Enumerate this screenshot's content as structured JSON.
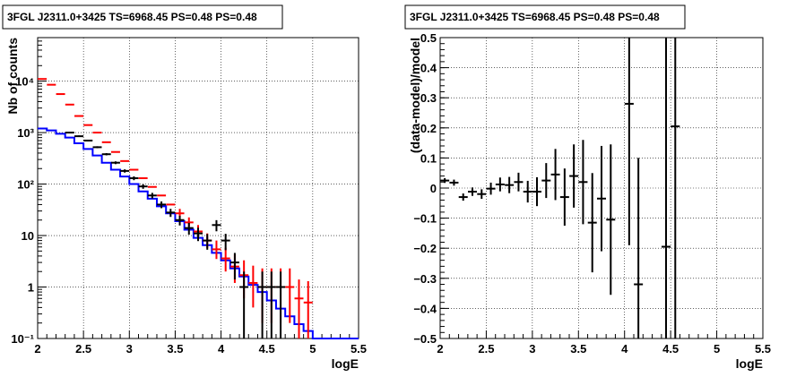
{
  "chart_data": [
    {
      "type": "histogram",
      "title": "3FGL J2311.0+3425 TS=6968.45 PS=0.48 PS=0.48",
      "xlabel": "logE",
      "ylabel": "Nb of counts",
      "xlim": [
        2,
        5.5
      ],
      "ylim": [
        0.1,
        70000
      ],
      "yscale": "log",
      "grid": true,
      "x_ticks": [
        2,
        2.5,
        3,
        3.5,
        4,
        4.5,
        5,
        5.5
      ],
      "x_tick_labels": [
        "2",
        "2.5",
        "3",
        "3.5",
        "4",
        "4.5",
        "5",
        "5.5"
      ],
      "y_ticks": [
        0.1,
        1,
        10,
        100,
        1000,
        10000
      ],
      "y_tick_labels": [
        "10⁻¹",
        "1",
        "10",
        "10²",
        "10³",
        "10⁴"
      ],
      "bin_edges": [
        2.0,
        2.1,
        2.2,
        2.3,
        2.4,
        2.5,
        2.6,
        2.7,
        2.8,
        2.9,
        3.0,
        3.1,
        3.2,
        3.3,
        3.4,
        3.5,
        3.6,
        3.7,
        3.8,
        3.9,
        4.0,
        4.1,
        4.2,
        4.3,
        4.4,
        4.5,
        4.6,
        4.7,
        4.8,
        4.9,
        5.0,
        5.1,
        5.2,
        5.3,
        5.4,
        5.5
      ],
      "series": [
        {
          "kind": "model-step",
          "color": "#0000ff",
          "values": [
            1200,
            1100,
            950,
            800,
            620,
            480,
            360,
            260,
            190,
            140,
            100,
            72,
            52,
            37,
            27,
            19,
            13,
            9,
            6.5,
            4.6,
            3.3,
            2.3,
            1.6,
            1.1,
            0.8,
            0.55,
            0.38,
            0.27,
            0.19,
            0.14,
            0.1,
            0.1,
            0.1,
            0.1,
            0.1
          ]
        },
        {
          "kind": "points-red",
          "color": "#ff0000",
          "x": [
            2.05,
            2.15,
            2.25,
            2.35,
            2.45,
            2.55,
            2.65,
            2.75,
            2.85,
            2.95,
            3.05,
            3.15,
            3.25,
            3.35,
            3.45,
            3.55,
            3.65,
            3.75,
            3.85,
            3.95,
            4.05,
            4.15,
            4.25,
            4.35,
            4.45,
            4.55,
            4.65,
            4.75,
            4.85,
            4.95
          ],
          "y": [
            11000,
            8500,
            5600,
            3500,
            2100,
            1400,
            1000,
            650,
            420,
            280,
            190,
            130,
            88,
            60,
            40,
            27,
            18,
            12,
            8,
            5.4,
            3.6,
            2.5,
            1.7,
            1.2,
            1.0,
            1.0,
            1.0,
            1.0,
            0.6,
            0.5
          ],
          "err_lo": [
            0,
            0,
            0,
            0,
            0,
            0,
            0,
            0,
            0,
            0,
            0,
            0,
            0,
            0,
            0,
            4,
            3,
            3,
            2.3,
            1.9,
            1.6,
            1.3,
            1.1,
            0.8,
            0.8,
            0.8,
            0.8,
            0.8,
            0.5,
            0.4
          ],
          "err_hi": [
            0,
            0,
            0,
            0,
            0,
            0,
            0,
            0,
            0,
            0,
            0,
            0,
            0,
            0,
            0,
            6,
            4.5,
            4,
            3,
            2.6,
            2.2,
            1.8,
            1.6,
            1.4,
            1.3,
            1.3,
            1.3,
            1.3,
            0.8,
            0.8
          ]
        },
        {
          "kind": "points-black",
          "color": "#000000",
          "x": [
            2.35,
            2.45,
            2.55,
            2.65,
            2.75,
            2.85,
            2.95,
            3.05,
            3.15,
            3.25,
            3.35,
            3.45,
            3.55,
            3.65,
            3.75,
            3.85,
            3.95,
            4.05,
            4.15,
            4.25,
            4.45,
            4.55,
            4.65
          ],
          "y": [
            1000,
            850,
            700,
            520,
            380,
            260,
            180,
            130,
            90,
            60,
            40,
            28,
            20,
            14,
            11,
            8,
            16,
            8,
            3.0,
            1.0,
            1.0,
            1.0,
            1.0
          ],
          "err_lo": [
            30,
            30,
            25,
            22,
            19,
            16,
            13,
            11,
            9,
            7.5,
            6,
            5,
            4.3,
            3.6,
            3.2,
            2.7,
            3.9,
            2.8,
            1.6,
            0.9,
            0.9,
            0.9,
            0.9
          ],
          "err_hi": [
            30,
            30,
            25,
            22,
            19,
            16,
            13,
            11,
            9,
            7.5,
            6,
            5,
            4.3,
            3.6,
            3.2,
            2.7,
            3.9,
            2.8,
            1.6,
            1.0,
            1.0,
            1.0,
            1.0
          ]
        }
      ]
    },
    {
      "type": "scatter",
      "title": "3FGL J2311.0+3425 TS=6968.45 PS=0.48 PS=0.48",
      "xlabel": "logE",
      "ylabel": "(data-model)/model",
      "xlim": [
        2,
        5.5
      ],
      "ylim": [
        -0.5,
        0.5
      ],
      "grid": true,
      "x_ticks": [
        2,
        2.5,
        3,
        3.5,
        4,
        4.5,
        5,
        5.5
      ],
      "x_tick_labels": [
        "2",
        "2.5",
        "3",
        "3.5",
        "4",
        "4.5",
        "5",
        "5.5"
      ],
      "y_ticks": [
        -0.5,
        -0.4,
        -0.3,
        -0.2,
        -0.1,
        0,
        0.1,
        0.2,
        0.3,
        0.4,
        0.5
      ],
      "y_tick_labels": [
        "−0.5",
        "−0.4",
        "−0.3",
        "−0.2",
        "−0.1",
        "0",
        "0.1",
        "0.2",
        "0.3",
        "0.4",
        "0.5"
      ],
      "series": [
        {
          "color": "#000000",
          "x": [
            2.05,
            2.15,
            2.25,
            2.35,
            2.45,
            2.55,
            2.65,
            2.75,
            2.85,
            2.95,
            3.05,
            3.15,
            3.25,
            3.35,
            3.45,
            3.55,
            3.65,
            3.75,
            3.85,
            4.05,
            4.15,
            4.45,
            4.55
          ],
          "y": [
            0.025,
            0.018,
            -0.03,
            -0.012,
            -0.02,
            -0.002,
            0.012,
            0.01,
            0.02,
            -0.012,
            -0.012,
            0.025,
            0.045,
            -0.03,
            0.04,
            0.02,
            -0.115,
            -0.035,
            -0.105,
            0.28,
            -0.32,
            -0.195,
            0.205
          ],
          "err": [
            0.008,
            0.01,
            0.012,
            0.014,
            0.016,
            0.02,
            0.023,
            0.027,
            0.031,
            0.036,
            0.048,
            0.058,
            0.085,
            0.095,
            0.105,
            0.14,
            0.165,
            0.175,
            0.25,
            0.47,
            0.42,
            0.75,
            0.75
          ]
        }
      ]
    }
  ]
}
